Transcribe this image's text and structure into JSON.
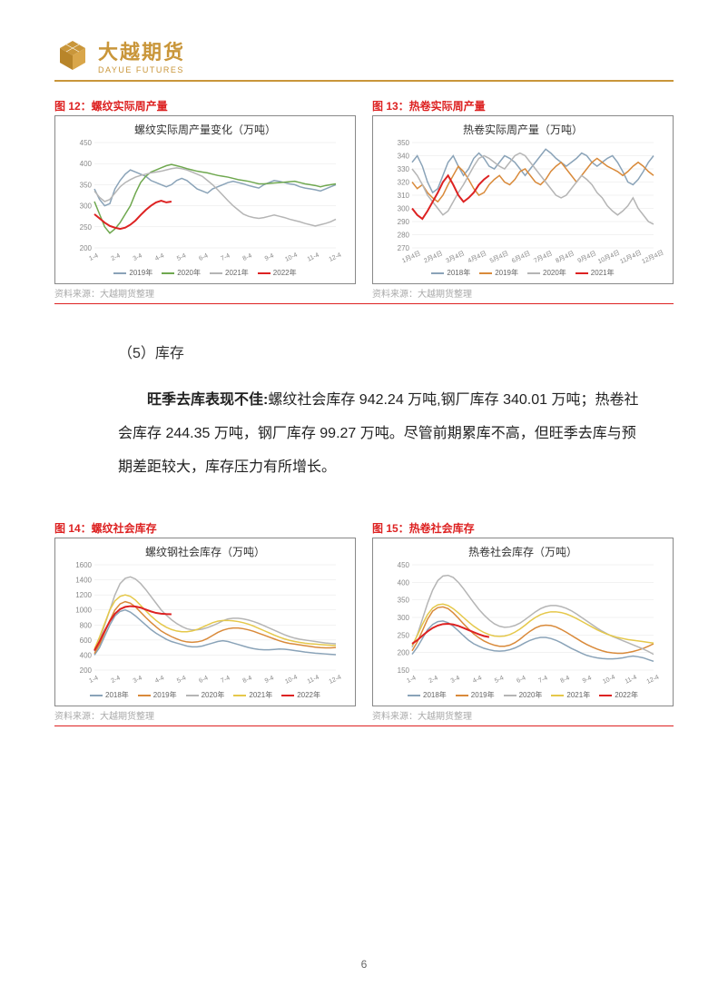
{
  "header": {
    "logo_cn": "大越期货",
    "logo_en": "DAYUE FUTURES",
    "logo_color": "#c9963a"
  },
  "section": {
    "label": "（5）库存"
  },
  "body": {
    "lead": "旺季去库表现不佳:",
    "text": "螺纹社会库存 942.24 万吨,钢厂库存 340.01 万吨；热卷社会库存 244.35 万吨，钢厂库存 99.27 万吨。尽管前期累库不高，但旺季去库与预期差距较大，库存压力有所增长。"
  },
  "charts": {
    "c12": {
      "label": "图 12：螺纹实际周产量",
      "title": "螺纹实际周产量变化（万吨）",
      "type": "line",
      "ylim": [
        200,
        450
      ],
      "ytick_step": 50,
      "xticks": [
        "1-4",
        "2-4",
        "3-4",
        "4-4",
        "5-4",
        "6-4",
        "7-4",
        "8-4",
        "9-4",
        "10-4",
        "11-4",
        "12-4"
      ],
      "series": [
        {
          "name": "2019年",
          "color": "#8aa3b8",
          "width": 1.5,
          "values": [
            340,
            315,
            300,
            305,
            340,
            360,
            375,
            385,
            380,
            375,
            370,
            360,
            355,
            350,
            345,
            350,
            360,
            365,
            360,
            350,
            340,
            335,
            330,
            340,
            345,
            350,
            355,
            358,
            355,
            352,
            348,
            345,
            342,
            350,
            355,
            360,
            358,
            355,
            352,
            350,
            345,
            342,
            340,
            338,
            335,
            340,
            345,
            350
          ]
        },
        {
          "name": "2020年",
          "color": "#6fa84f",
          "width": 1.5,
          "values": [
            310,
            280,
            250,
            235,
            245,
            260,
            280,
            300,
            330,
            355,
            370,
            380,
            385,
            390,
            395,
            398,
            395,
            392,
            388,
            385,
            382,
            380,
            378,
            375,
            372,
            370,
            368,
            365,
            362,
            360,
            358,
            355,
            352,
            352,
            353,
            354,
            355,
            356,
            357,
            358,
            355,
            352,
            350,
            348,
            345,
            348,
            350,
            352
          ]
        },
        {
          "name": "2021年",
          "color": "#b5b5b5",
          "width": 1.5,
          "values": [
            335,
            320,
            310,
            315,
            330,
            345,
            355,
            362,
            368,
            372,
            375,
            378,
            380,
            382,
            385,
            388,
            390,
            388,
            385,
            380,
            375,
            370,
            360,
            350,
            338,
            325,
            312,
            300,
            290,
            280,
            275,
            272,
            270,
            272,
            275,
            278,
            275,
            272,
            268,
            265,
            262,
            258,
            255,
            252,
            255,
            258,
            262,
            268
          ]
        },
        {
          "name": "2022年",
          "color": "#d22",
          "width": 2.0,
          "values": [
            280,
            270,
            260,
            252,
            248,
            245,
            248,
            255,
            265,
            278,
            290,
            300,
            308,
            312,
            308,
            310
          ]
        }
      ],
      "bg": "#ffffff",
      "grid": "#e5e5e5"
    },
    "c13": {
      "label": "图 13：热卷实际周产量",
      "title": "热卷实际周产量（万吨）",
      "type": "line",
      "ylim": [
        270,
        350
      ],
      "ytick_step": 10,
      "xticks": [
        "1月4日",
        "2月4日",
        "3月4日",
        "4月4日",
        "5月4日",
        "6月4日",
        "7月4日",
        "8月4日",
        "9月4日",
        "10月4日",
        "11月4日",
        "12月4日"
      ],
      "series": [
        {
          "name": "2018年",
          "color": "#8aa3b8",
          "width": 1.5,
          "values": [
            335,
            340,
            332,
            320,
            312,
            315,
            325,
            335,
            340,
            332,
            325,
            330,
            338,
            342,
            338,
            332,
            330,
            335,
            340,
            338,
            335,
            330,
            325,
            330,
            335,
            340,
            345,
            342,
            338,
            335,
            332,
            335,
            338,
            342,
            340,
            335,
            332,
            335,
            338,
            340,
            335,
            328,
            320,
            318,
            322,
            328,
            335,
            340
          ]
        },
        {
          "name": "2019年",
          "color": "#d98a3a",
          "width": 1.5,
          "values": [
            320,
            315,
            318,
            312,
            308,
            305,
            310,
            318,
            325,
            332,
            328,
            322,
            315,
            310,
            312,
            318,
            322,
            325,
            320,
            318,
            322,
            328,
            330,
            325,
            320,
            318,
            322,
            328,
            332,
            335,
            330,
            325,
            320,
            325,
            330,
            335,
            338,
            335,
            332,
            330,
            328,
            325,
            328,
            332,
            335,
            332,
            328,
            325
          ]
        },
        {
          "name": "2020年",
          "color": "#b5b5b5",
          "width": 1.5,
          "values": [
            330,
            325,
            318,
            310,
            305,
            300,
            295,
            298,
            305,
            312,
            318,
            325,
            332,
            338,
            340,
            338,
            335,
            332,
            330,
            335,
            340,
            342,
            340,
            335,
            330,
            325,
            320,
            315,
            310,
            308,
            310,
            315,
            320,
            325,
            322,
            318,
            312,
            308,
            302,
            298,
            295,
            298,
            302,
            308,
            300,
            295,
            290,
            288
          ]
        },
        {
          "name": "2021年",
          "color": "#d22",
          "width": 2.0,
          "values": [
            300,
            295,
            292,
            298,
            305,
            312,
            320,
            325,
            318,
            310,
            305,
            308,
            312,
            318,
            322,
            325
          ]
        }
      ],
      "bg": "#ffffff",
      "grid": "#e5e5e5"
    },
    "c14": {
      "label": "图 14：螺纹社会库存",
      "title": "螺纹钢社会库存（万吨）",
      "type": "line",
      "ylim": [
        200,
        1600
      ],
      "ytick_step": 200,
      "xticks": [
        "1-4",
        "2-4",
        "3-4",
        "4-4",
        "5-4",
        "6-4",
        "7-4",
        "8-4",
        "9-4",
        "10-4",
        "11-4",
        "12-4"
      ],
      "series": [
        {
          "name": "2018年",
          "color": "#8aa3b8",
          "width": 1.5,
          "values": [
            400,
            500,
            650,
            800,
            920,
            980,
            1000,
            970,
            920,
            860,
            800,
            740,
            690,
            650,
            610,
            580,
            560,
            540,
            520,
            510,
            510,
            520,
            540,
            560,
            580,
            590,
            580,
            560,
            540,
            520,
            500,
            485,
            475,
            470,
            470,
            475,
            480,
            478,
            470,
            460,
            450,
            440,
            432,
            425,
            420,
            415,
            410,
            405
          ]
        },
        {
          "name": "2019年",
          "color": "#d98a3a",
          "width": 1.5,
          "values": [
            420,
            540,
            700,
            860,
            1000,
            1080,
            1110,
            1090,
            1040,
            970,
            900,
            835,
            775,
            720,
            680,
            645,
            615,
            590,
            575,
            570,
            575,
            590,
            620,
            660,
            700,
            730,
            750,
            760,
            760,
            750,
            735,
            715,
            690,
            665,
            640,
            615,
            590,
            570,
            555,
            545,
            535,
            525,
            515,
            505,
            498,
            495,
            495,
            500
          ]
        },
        {
          "name": "2020年",
          "color": "#b5b5b5",
          "width": 1.5,
          "values": [
            450,
            600,
            800,
            1000,
            1200,
            1350,
            1420,
            1440,
            1410,
            1350,
            1270,
            1180,
            1090,
            1000,
            930,
            870,
            820,
            780,
            750,
            735,
            735,
            745,
            765,
            790,
            820,
            855,
            880,
            890,
            890,
            880,
            865,
            845,
            820,
            790,
            760,
            730,
            700,
            670,
            645,
            625,
            610,
            600,
            590,
            580,
            570,
            560,
            555,
            550
          ]
        },
        {
          "name": "2021年",
          "color": "#e5c84a",
          "width": 1.5,
          "values": [
            480,
            640,
            820,
            1000,
            1120,
            1180,
            1200,
            1180,
            1130,
            1060,
            990,
            920,
            860,
            810,
            770,
            740,
            720,
            710,
            710,
            720,
            740,
            770,
            800,
            830,
            850,
            860,
            860,
            855,
            845,
            830,
            810,
            785,
            755,
            725,
            695,
            665,
            638,
            615,
            595,
            580,
            568,
            558,
            550,
            545,
            540,
            535,
            530,
            528
          ]
        },
        {
          "name": "2022年",
          "color": "#d22",
          "width": 2.0,
          "values": [
            460,
            580,
            720,
            850,
            950,
            1010,
            1040,
            1050,
            1045,
            1030,
            1005,
            980,
            960,
            950,
            945,
            942
          ]
        }
      ],
      "bg": "#ffffff",
      "grid": "#e5e5e5"
    },
    "c15": {
      "label": "图 15：热卷社会库存",
      "title": "热卷社会库存（万吨）",
      "type": "line",
      "ylim": [
        150,
        450
      ],
      "ytick_step": 50,
      "xticks": [
        "1-4",
        "2-4",
        "3-4",
        "4-4",
        "5-4",
        "6-4",
        "7-4",
        "8-4",
        "9-4",
        "10-4",
        "11-4",
        "12-4"
      ],
      "series": [
        {
          "name": "2018年",
          "color": "#8aa3b8",
          "width": 1.5,
          "values": [
            195,
            215,
            240,
            265,
            280,
            288,
            290,
            285,
            275,
            262,
            248,
            235,
            225,
            218,
            212,
            208,
            205,
            204,
            205,
            208,
            213,
            220,
            228,
            235,
            240,
            243,
            243,
            240,
            235,
            228,
            220,
            212,
            205,
            198,
            192,
            188,
            185,
            183,
            182,
            182,
            183,
            185,
            188,
            190,
            188,
            185,
            180,
            175
          ]
        },
        {
          "name": "2019年",
          "color": "#d98a3a",
          "width": 1.5,
          "values": [
            205,
            230,
            262,
            295,
            318,
            328,
            330,
            325,
            313,
            298,
            282,
            267,
            253,
            242,
            233,
            226,
            221,
            218,
            218,
            221,
            228,
            238,
            250,
            261,
            270,
            276,
            278,
            277,
            273,
            266,
            258,
            249,
            240,
            231,
            223,
            216,
            210,
            205,
            201,
            199,
            198,
            198,
            200,
            203,
            207,
            212,
            218,
            225
          ]
        },
        {
          "name": "2020年",
          "color": "#b5b5b5",
          "width": 1.5,
          "values": [
            215,
            250,
            295,
            340,
            378,
            405,
            418,
            420,
            414,
            400,
            382,
            362,
            342,
            323,
            307,
            293,
            282,
            275,
            272,
            273,
            277,
            284,
            294,
            305,
            316,
            325,
            331,
            334,
            334,
            331,
            326,
            319,
            310,
            300,
            290,
            280,
            270,
            261,
            253,
            246,
            240,
            234,
            228,
            222,
            216,
            210,
            203,
            195
          ]
        },
        {
          "name": "2021年",
          "color": "#e5c84a",
          "width": 1.5,
          "values": [
            220,
            248,
            280,
            308,
            327,
            336,
            338,
            334,
            325,
            313,
            300,
            287,
            275,
            265,
            257,
            251,
            247,
            246,
            247,
            251,
            258,
            267,
            278,
            290,
            300,
            308,
            313,
            316,
            316,
            314,
            310,
            304,
            297,
            289,
            281,
            273,
            265,
            258,
            252,
            247,
            243,
            240,
            237,
            235,
            233,
            231,
            229,
            227
          ]
        },
        {
          "name": "2022年",
          "color": "#d22",
          "width": 2.0,
          "values": [
            225,
            235,
            248,
            260,
            270,
            277,
            281,
            282,
            280,
            276,
            270,
            264,
            258,
            252,
            247,
            244
          ]
        }
      ],
      "bg": "#ffffff",
      "grid": "#e5e5e5"
    }
  },
  "source": "资料来源：大越期货整理",
  "page_number": "6",
  "fonts": {
    "tick": 8,
    "title": 12,
    "label": 10
  }
}
